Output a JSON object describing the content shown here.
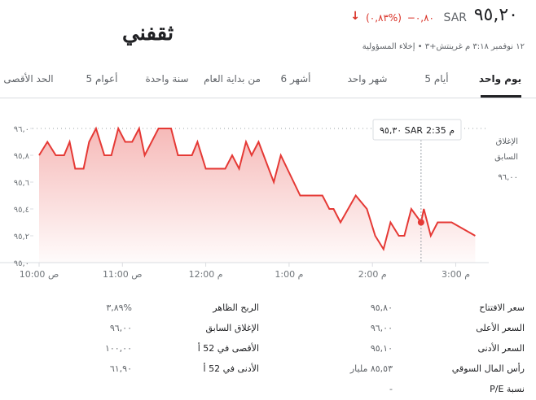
{
  "header": {
    "logo": "ثقفني",
    "price": "٩٥,٢٠",
    "currency": "SAR",
    "change": "−٠,٨٠",
    "change_percent": "(٠,٨٣%)",
    "timestamp": "١٢ نوفمبر ٣:١٨ م غرينتش+٣ • إخلاء المسؤولية"
  },
  "tabs": {
    "items": [
      "يوم واحد",
      "5 أيام",
      "شهر واحد",
      "6 أشهر",
      "من بداية العام",
      "سنة واحدة",
      "5 أعوام",
      "الحد الأقصى"
    ],
    "selected": 0
  },
  "chart": {
    "type": "line",
    "color": "#e53935",
    "x": [
      600,
      606,
      612,
      618,
      622,
      626,
      632,
      636,
      641,
      647,
      652,
      657,
      662,
      667,
      672,
      676,
      686,
      695,
      700,
      710,
      714,
      720,
      734,
      739,
      744,
      749,
      753,
      758,
      769,
      774,
      788,
      804,
      809,
      812,
      817,
      828,
      836,
      842,
      848,
      853,
      859,
      863,
      868,
      875,
      877,
      882,
      887,
      897,
      914
    ],
    "values": [
      95.8,
      95.9,
      95.8,
      95.8,
      95.9,
      95.7,
      95.7,
      95.9,
      96.0,
      95.8,
      95.8,
      96.0,
      95.9,
      95.9,
      96.0,
      95.8,
      96.0,
      96.0,
      95.8,
      95.8,
      95.9,
      95.7,
      95.7,
      95.8,
      95.7,
      95.9,
      95.8,
      95.9,
      95.6,
      95.8,
      95.5,
      95.5,
      95.4,
      95.4,
      95.3,
      95.5,
      95.4,
      95.2,
      95.1,
      95.3,
      95.2,
      95.2,
      95.4,
      95.3,
      95.4,
      95.2,
      95.3,
      95.3,
      95.2
    ],
    "xlim": [
      593,
      935
    ],
    "xticks": [
      {
        "value": 600,
        "label": "10:00 ص"
      },
      {
        "value": 660,
        "label": "11:00 ص"
      },
      {
        "value": 720,
        "label": "12:00 م"
      },
      {
        "value": 780,
        "label": "1:00 م"
      },
      {
        "value": 840,
        "label": "2:00 م"
      },
      {
        "value": 900,
        "label": "3:00 م"
      }
    ],
    "ylim": [
      95.0,
      96.0
    ],
    "yticks": [
      {
        "value": 96.0,
        "label": "٩٦,٠"
      },
      {
        "value": 95.8,
        "label": "٩٥,٨"
      },
      {
        "value": 95.6,
        "label": "٩٥,٦"
      },
      {
        "value": 95.4,
        "label": "٩٥,٤"
      },
      {
        "value": 95.2,
        "label": "٩٥,٢"
      },
      {
        "value": 95.0,
        "label": "٩٥,٠"
      }
    ],
    "grid": false,
    "previous_close": {
      "value": 96.0,
      "label_lines": [
        "الإغلاق",
        "السابق"
      ],
      "value_label": "٩٦,٠٠"
    },
    "tooltip": {
      "x": 875,
      "value": 95.3,
      "time": "2:35 م",
      "price": "٩٥,٣٠ SAR"
    }
  },
  "stats": {
    "rows": [
      [
        "سعر الافتتاح",
        "٩٥,٨٠",
        "الربح الظاهر",
        "%٣,٨٩"
      ],
      [
        "السعر الأعلى",
        "٩٦,٠٠",
        "الإغلاق السابق",
        "٩٦,٠٠"
      ],
      [
        "السعر الأدنى",
        "٩٥,١٠",
        "الأقصى في 52 أ",
        "١٠٠,٠٠"
      ],
      [
        "رأس المال السوقي",
        "٨٥,٥٣ مليار",
        "الأدنى في 52 أ",
        "٦١,٩٠"
      ],
      [
        "نسبة P/E",
        "-",
        "",
        ""
      ]
    ]
  }
}
